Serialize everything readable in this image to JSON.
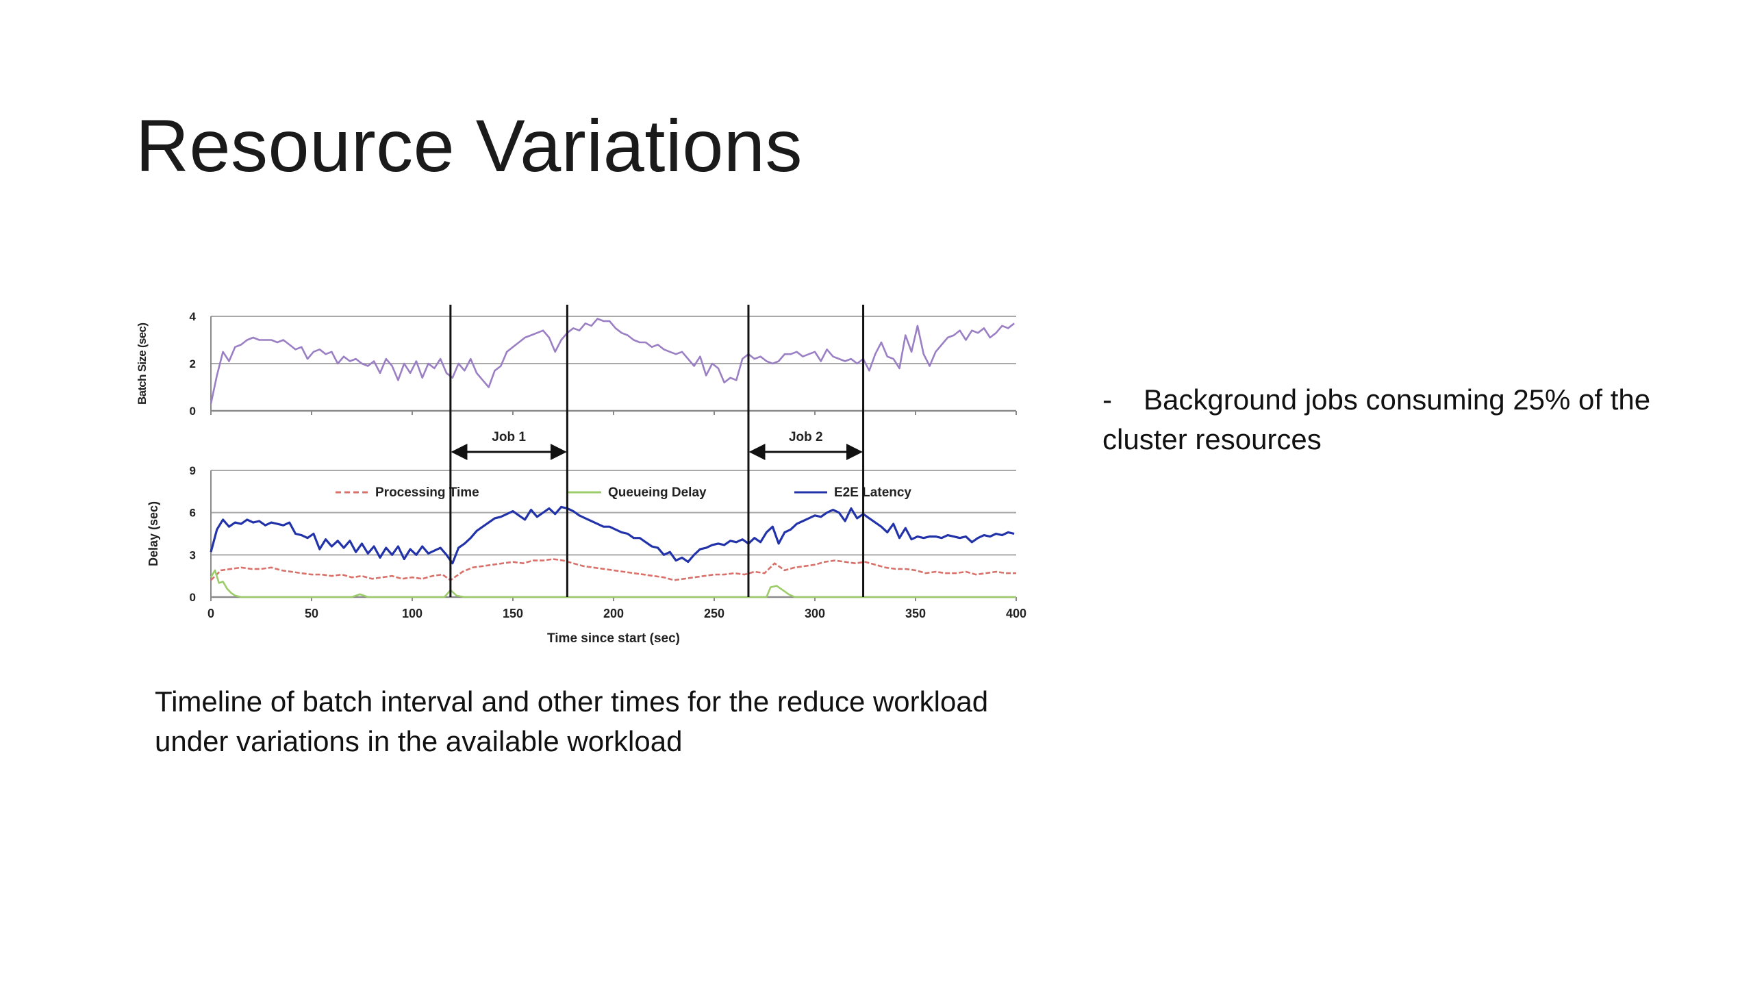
{
  "slide": {
    "title": "Resource Variations",
    "caption": "Timeline of batch interval and other times for the reduce workload under variations in the available workload",
    "bullet": {
      "marker": "-",
      "text": "Background jobs consuming 25% of the cluster resources"
    }
  },
  "chart_data": [
    {
      "type": "line",
      "ylabel": "Batch Size (sec)",
      "xlabel": "",
      "xlim": [
        0,
        400
      ],
      "ylim": [
        0,
        4
      ],
      "yticks": [
        0,
        2,
        4
      ],
      "grid": true,
      "series": [
        {
          "color": "#9b7fc4",
          "x": [
            0,
            3,
            6,
            9,
            12,
            15,
            18,
            21,
            24,
            27,
            30,
            33,
            36,
            39,
            42,
            45,
            48,
            51,
            54,
            57,
            60,
            63,
            66,
            69,
            72,
            75,
            78,
            81,
            84,
            87,
            90,
            93,
            96,
            99,
            102,
            105,
            108,
            111,
            114,
            117,
            120,
            123,
            126,
            129,
            132,
            135,
            138,
            141,
            144,
            147,
            150,
            153,
            156,
            159,
            162,
            165,
            168,
            171,
            174,
            177,
            180,
            183,
            186,
            189,
            192,
            195,
            198,
            201,
            204,
            207,
            210,
            213,
            216,
            219,
            222,
            225,
            228,
            231,
            234,
            237,
            240,
            243,
            246,
            249,
            252,
            255,
            258,
            261,
            264,
            267,
            270,
            273,
            276,
            279,
            282,
            285,
            288,
            291,
            294,
            297,
            300,
            303,
            306,
            309,
            312,
            315,
            318,
            321,
            324,
            327,
            330,
            333,
            336,
            339,
            342,
            345,
            348,
            351,
            354,
            357,
            360,
            363,
            366,
            369,
            372,
            375,
            378,
            381,
            384,
            387,
            390,
            393,
            396,
            399
          ],
          "values": [
            0.3,
            1.5,
            2.5,
            2.1,
            2.7,
            2.8,
            3.0,
            3.1,
            3.0,
            3.0,
            3.0,
            2.9,
            3.0,
            2.8,
            2.6,
            2.7,
            2.2,
            2.5,
            2.6,
            2.4,
            2.5,
            2.0,
            2.3,
            2.1,
            2.2,
            2.0,
            1.9,
            2.1,
            1.6,
            2.2,
            1.9,
            1.3,
            2.0,
            1.6,
            2.1,
            1.4,
            2.0,
            1.8,
            2.2,
            1.6,
            1.4,
            2.0,
            1.7,
            2.2,
            1.6,
            1.3,
            1.0,
            1.7,
            1.9,
            2.5,
            2.7,
            2.9,
            3.1,
            3.2,
            3.3,
            3.4,
            3.1,
            2.5,
            3.0,
            3.3,
            3.5,
            3.4,
            3.7,
            3.6,
            3.9,
            3.8,
            3.8,
            3.5,
            3.3,
            3.2,
            3.0,
            2.9,
            2.9,
            2.7,
            2.8,
            2.6,
            2.5,
            2.4,
            2.5,
            2.2,
            1.9,
            2.3,
            1.5,
            2.0,
            1.8,
            1.2,
            1.4,
            1.3,
            2.2,
            2.4,
            2.2,
            2.3,
            2.1,
            2.0,
            2.1,
            2.4,
            2.4,
            2.5,
            2.3,
            2.4,
            2.5,
            2.1,
            2.6,
            2.3,
            2.2,
            2.1,
            2.2,
            2.0,
            2.2,
            1.7,
            2.4,
            2.9,
            2.3,
            2.2,
            1.8,
            3.2,
            2.5,
            3.6,
            2.4,
            1.9,
            2.5,
            2.8,
            3.1,
            3.2,
            3.4,
            3.0,
            3.4,
            3.3,
            3.5,
            3.1,
            3.3,
            3.6,
            3.5,
            3.7
          ]
        }
      ]
    },
    {
      "type": "line",
      "ylabel": "Delay (sec)",
      "xlabel": "Time since start (sec)",
      "xlim": [
        0,
        400
      ],
      "ylim": [
        0,
        9
      ],
      "xticks": [
        0,
        50,
        100,
        150,
        200,
        250,
        300,
        350,
        400
      ],
      "yticks": [
        0,
        3,
        6,
        9
      ],
      "grid": true,
      "legend": "top",
      "annotations": [
        {
          "label": "Job 1",
          "x_start": 119,
          "x_end": 177
        },
        {
          "label": "Job 2",
          "x_start": 267,
          "x_end": 324
        }
      ],
      "series": [
        {
          "name": "Processing Time",
          "color": "#d9716b",
          "style": "dashed",
          "x": [
            0,
            5,
            10,
            15,
            20,
            25,
            30,
            35,
            40,
            45,
            50,
            55,
            60,
            65,
            70,
            75,
            80,
            85,
            90,
            95,
            100,
            105,
            110,
            115,
            119,
            125,
            130,
            135,
            140,
            145,
            150,
            155,
            160,
            165,
            170,
            175,
            180,
            185,
            190,
            195,
            200,
            205,
            210,
            215,
            220,
            225,
            230,
            235,
            240,
            245,
            250,
            255,
            260,
            265,
            270,
            275,
            280,
            285,
            290,
            295,
            300,
            305,
            310,
            315,
            320,
            325,
            330,
            335,
            340,
            345,
            350,
            355,
            360,
            365,
            370,
            375,
            380,
            385,
            390,
            395,
            400
          ],
          "values": [
            1.2,
            1.9,
            2.0,
            2.1,
            2.0,
            2.0,
            2.1,
            1.9,
            1.8,
            1.7,
            1.6,
            1.6,
            1.5,
            1.6,
            1.4,
            1.5,
            1.3,
            1.4,
            1.5,
            1.3,
            1.4,
            1.3,
            1.5,
            1.6,
            1.2,
            1.8,
            2.1,
            2.2,
            2.3,
            2.4,
            2.5,
            2.4,
            2.6,
            2.6,
            2.7,
            2.6,
            2.4,
            2.2,
            2.1,
            2.0,
            1.9,
            1.8,
            1.7,
            1.6,
            1.5,
            1.4,
            1.2,
            1.3,
            1.4,
            1.5,
            1.6,
            1.6,
            1.7,
            1.6,
            1.8,
            1.7,
            2.4,
            1.9,
            2.1,
            2.2,
            2.3,
            2.5,
            2.6,
            2.5,
            2.4,
            2.5,
            2.3,
            2.1,
            2.0,
            2.0,
            1.9,
            1.7,
            1.8,
            1.7,
            1.7,
            1.8,
            1.6,
            1.7,
            1.8,
            1.7,
            1.7
          ]
        },
        {
          "name": "Queueing Delay",
          "color": "#9ccc6a",
          "style": "solid",
          "x": [
            0,
            2,
            4,
            6,
            8,
            10,
            12,
            15,
            20,
            70,
            74,
            78,
            100,
            116,
            119,
            122,
            126,
            130,
            200,
            276,
            278,
            281,
            284,
            287,
            290,
            300,
            400
          ],
          "values": [
            1.4,
            1.9,
            1.0,
            1.1,
            0.6,
            0.3,
            0.1,
            0.0,
            0.0,
            0.0,
            0.2,
            0.0,
            0.0,
            0.0,
            0.5,
            0.1,
            0.0,
            0.0,
            0.0,
            0.0,
            0.7,
            0.8,
            0.5,
            0.2,
            0.0,
            0.0,
            0.0
          ]
        },
        {
          "name": "E2E Latency",
          "color": "#2233aa",
          "style": "solid",
          "x": [
            0,
            3,
            6,
            9,
            12,
            15,
            18,
            21,
            24,
            27,
            30,
            33,
            36,
            39,
            42,
            45,
            48,
            51,
            54,
            57,
            60,
            63,
            66,
            69,
            72,
            75,
            78,
            81,
            84,
            87,
            90,
            93,
            96,
            99,
            102,
            105,
            108,
            111,
            114,
            117,
            120,
            123,
            126,
            129,
            132,
            135,
            138,
            141,
            144,
            147,
            150,
            153,
            156,
            159,
            162,
            165,
            168,
            171,
            174,
            177,
            180,
            183,
            186,
            189,
            192,
            195,
            198,
            201,
            204,
            207,
            210,
            213,
            216,
            219,
            222,
            225,
            228,
            231,
            234,
            237,
            240,
            243,
            246,
            249,
            252,
            255,
            258,
            261,
            264,
            267,
            270,
            273,
            276,
            279,
            282,
            285,
            288,
            291,
            294,
            297,
            300,
            303,
            306,
            309,
            312,
            315,
            318,
            321,
            324,
            327,
            330,
            333,
            336,
            339,
            342,
            345,
            348,
            351,
            354,
            357,
            360,
            363,
            366,
            369,
            372,
            375,
            378,
            381,
            384,
            387,
            390,
            393,
            396,
            399
          ],
          "values": [
            3.2,
            4.8,
            5.5,
            5.0,
            5.3,
            5.2,
            5.5,
            5.3,
            5.4,
            5.1,
            5.3,
            5.2,
            5.1,
            5.3,
            4.5,
            4.4,
            4.2,
            4.5,
            3.4,
            4.1,
            3.6,
            4.0,
            3.5,
            4.0,
            3.2,
            3.8,
            3.1,
            3.6,
            2.8,
            3.5,
            3.0,
            3.6,
            2.7,
            3.4,
            3.0,
            3.6,
            3.1,
            3.3,
            3.5,
            3.0,
            2.4,
            3.5,
            3.8,
            4.2,
            4.7,
            5.0,
            5.3,
            5.6,
            5.7,
            5.9,
            6.1,
            5.8,
            5.5,
            6.2,
            5.7,
            6.0,
            6.3,
            5.9,
            6.4,
            6.3,
            6.1,
            5.8,
            5.6,
            5.4,
            5.2,
            5.0,
            5.0,
            4.8,
            4.6,
            4.5,
            4.2,
            4.2,
            3.9,
            3.6,
            3.5,
            3.0,
            3.2,
            2.6,
            2.8,
            2.5,
            3.0,
            3.4,
            3.5,
            3.7,
            3.8,
            3.7,
            4.0,
            3.9,
            4.1,
            3.8,
            4.2,
            3.9,
            4.6,
            5.0,
            3.8,
            4.6,
            4.8,
            5.2,
            5.4,
            5.6,
            5.8,
            5.7,
            6.0,
            6.2,
            6.0,
            5.4,
            6.3,
            5.6,
            5.9,
            5.6,
            5.3,
            5.0,
            4.6,
            5.2,
            4.2,
            4.9,
            4.1,
            4.3,
            4.2,
            4.3,
            4.3,
            4.2,
            4.4,
            4.3,
            4.2,
            4.3,
            3.9,
            4.2,
            4.4,
            4.3,
            4.5,
            4.4,
            4.6,
            4.5
          ]
        }
      ]
    }
  ]
}
